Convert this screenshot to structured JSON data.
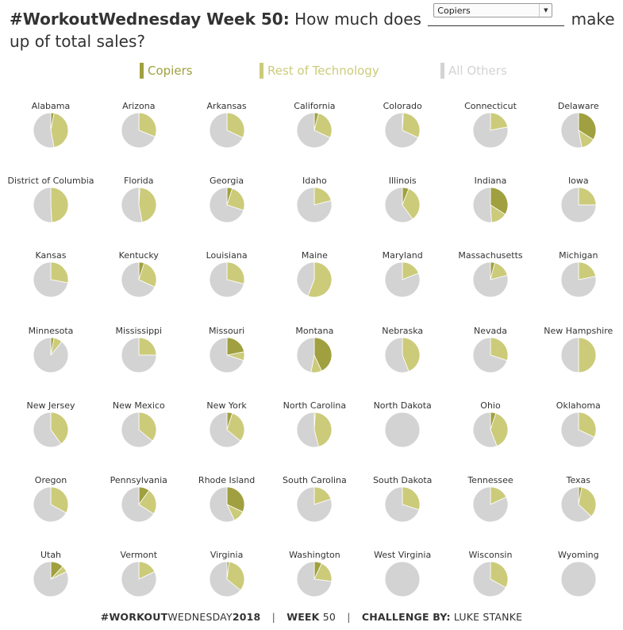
{
  "header": {
    "title_bold": "#WorkoutWednesday Week 50:",
    "question_start": "How much does",
    "question_end": "make up of total sales?",
    "selected_category": "Copiers"
  },
  "legend": [
    {
      "label": "Copiers",
      "color": "#a0a040"
    },
    {
      "label": "Rest of Technology",
      "color": "#cccb7a"
    },
    {
      "label": "All Others",
      "color": "#d3d3d3"
    }
  ],
  "colors": {
    "copiers": "#a0a040",
    "rest_of_technology": "#cccb7a",
    "all_others": "#d3d3d3"
  },
  "chart_data": {
    "type": "pie",
    "series_names": [
      "Copiers",
      "Rest of Technology",
      "All Others"
    ],
    "states": [
      {
        "name": "Alabama",
        "copiers": 3,
        "rest_of_technology": 44,
        "all_others": 53
      },
      {
        "name": "Arizona",
        "copiers": 0,
        "rest_of_technology": 31,
        "all_others": 69
      },
      {
        "name": "Arkansas",
        "copiers": 0,
        "rest_of_technology": 32,
        "all_others": 68
      },
      {
        "name": "California",
        "copiers": 4,
        "rest_of_technology": 28,
        "all_others": 68
      },
      {
        "name": "Colorado",
        "copiers": 1,
        "rest_of_technology": 31,
        "all_others": 68
      },
      {
        "name": "Connecticut",
        "copiers": 0,
        "rest_of_technology": 22,
        "all_others": 78
      },
      {
        "name": "Delaware",
        "copiers": 34,
        "rest_of_technology": 13,
        "all_others": 53
      },
      {
        "name": "District of Columbia",
        "copiers": 0,
        "rest_of_technology": 49,
        "all_others": 51
      },
      {
        "name": "Florida",
        "copiers": 1,
        "rest_of_technology": 46,
        "all_others": 53
      },
      {
        "name": "Georgia",
        "copiers": 5,
        "rest_of_technology": 25,
        "all_others": 70
      },
      {
        "name": "Idaho",
        "copiers": 0,
        "rest_of_technology": 21,
        "all_others": 79
      },
      {
        "name": "Illinois",
        "copiers": 6,
        "rest_of_technology": 34,
        "all_others": 60
      },
      {
        "name": "Indiana",
        "copiers": 34,
        "rest_of_technology": 15,
        "all_others": 51
      },
      {
        "name": "Iowa",
        "copiers": 0,
        "rest_of_technology": 25,
        "all_others": 75
      },
      {
        "name": "Kansas",
        "copiers": 0,
        "rest_of_technology": 28,
        "all_others": 72
      },
      {
        "name": "Kentucky",
        "copiers": 5,
        "rest_of_technology": 27,
        "all_others": 68
      },
      {
        "name": "Louisiana",
        "copiers": 0,
        "rest_of_technology": 29,
        "all_others": 71
      },
      {
        "name": "Maine",
        "copiers": 0,
        "rest_of_technology": 56,
        "all_others": 44
      },
      {
        "name": "Maryland",
        "copiers": 0,
        "rest_of_technology": 19,
        "all_others": 81
      },
      {
        "name": "Massachusetts",
        "copiers": 4,
        "rest_of_technology": 17,
        "all_others": 79
      },
      {
        "name": "Michigan",
        "copiers": 0,
        "rest_of_technology": 22,
        "all_others": 78
      },
      {
        "name": "Minnesota",
        "copiers": 3,
        "rest_of_technology": 8,
        "all_others": 89
      },
      {
        "name": "Mississippi",
        "copiers": 0,
        "rest_of_technology": 25,
        "all_others": 75
      },
      {
        "name": "Missouri",
        "copiers": 22,
        "rest_of_technology": 8,
        "all_others": 70
      },
      {
        "name": "Montana",
        "copiers": 43,
        "rest_of_technology": 10,
        "all_others": 47
      },
      {
        "name": "Nebraska",
        "copiers": 0,
        "rest_of_technology": 44,
        "all_others": 56
      },
      {
        "name": "Nevada",
        "copiers": 0,
        "rest_of_technology": 30,
        "all_others": 70
      },
      {
        "name": "New Hampshire",
        "copiers": 0,
        "rest_of_technology": 50,
        "all_others": 50
      },
      {
        "name": "New Jersey",
        "copiers": 0,
        "rest_of_technology": 40,
        "all_others": 60
      },
      {
        "name": "New Mexico",
        "copiers": 0,
        "rest_of_technology": 36,
        "all_others": 64
      },
      {
        "name": "New York",
        "copiers": 5,
        "rest_of_technology": 31,
        "all_others": 64
      },
      {
        "name": "North Carolina",
        "copiers": 1,
        "rest_of_technology": 45,
        "all_others": 54
      },
      {
        "name": "North Dakota",
        "copiers": 0,
        "rest_of_technology": 0,
        "all_others": 100
      },
      {
        "name": "Ohio",
        "copiers": 5,
        "rest_of_technology": 39,
        "all_others": 56
      },
      {
        "name": "Oklahoma",
        "copiers": 0,
        "rest_of_technology": 32,
        "all_others": 68
      },
      {
        "name": "Oregon",
        "copiers": 0,
        "rest_of_technology": 33,
        "all_others": 67
      },
      {
        "name": "Pennsylvania",
        "copiers": 10,
        "rest_of_technology": 24,
        "all_others": 66
      },
      {
        "name": "Rhode Island",
        "copiers": 32,
        "rest_of_technology": 11,
        "all_others": 57
      },
      {
        "name": "South Carolina",
        "copiers": 0,
        "rest_of_technology": 20,
        "all_others": 80
      },
      {
        "name": "South Dakota",
        "copiers": 0,
        "rest_of_technology": 30,
        "all_others": 70
      },
      {
        "name": "Tennessee",
        "copiers": 0,
        "rest_of_technology": 18,
        "all_others": 82
      },
      {
        "name": "Texas",
        "copiers": 3,
        "rest_of_technology": 34,
        "all_others": 63
      },
      {
        "name": "Utah",
        "copiers": 12,
        "rest_of_technology": 6,
        "all_others": 82
      },
      {
        "name": "Vermont",
        "copiers": 0,
        "rest_of_technology": 18,
        "all_others": 82
      },
      {
        "name": "Virginia",
        "copiers": 2,
        "rest_of_technology": 34,
        "all_others": 64
      },
      {
        "name": "Washington",
        "copiers": 7,
        "rest_of_technology": 20,
        "all_others": 73
      },
      {
        "name": "West Virginia",
        "copiers": 0,
        "rest_of_technology": 0,
        "all_others": 100
      },
      {
        "name": "Wisconsin",
        "copiers": 0,
        "rest_of_technology": 33,
        "all_others": 67
      },
      {
        "name": "Wyoming",
        "copiers": 0,
        "rest_of_technology": 0,
        "all_others": 100
      }
    ]
  },
  "footer": {
    "part1_bold": "#WORKOUT",
    "part1_regular": "WEDNESDAY",
    "part1_year": "2018",
    "separator": "|",
    "week_label": "WEEK",
    "week_number": "50",
    "challenge_label": "CHALLENGE BY:",
    "author": "LUKE STANKE"
  }
}
